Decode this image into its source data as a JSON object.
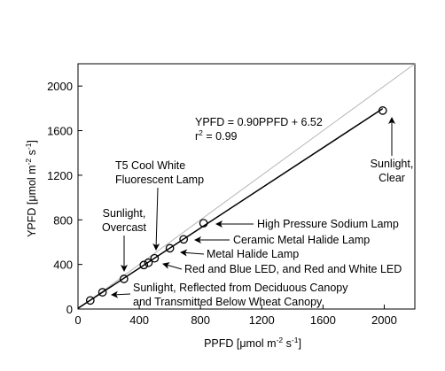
{
  "chart_data": {
    "type": "scatter",
    "xlabel": {
      "base": "PPFD [μmol m",
      "exp1": "-2",
      "mid": " s",
      "exp2": "-1",
      "end": "]"
    },
    "ylabel": {
      "base": "YPFD [μmol m",
      "exp1": "-2",
      "mid": " s",
      "exp2": "-1",
      "end": "]"
    },
    "xlim": [
      0,
      2200
    ],
    "ylim": [
      0,
      2200
    ],
    "xticks": [
      0,
      400,
      800,
      1200,
      1600,
      2000
    ],
    "yticks": [
      0,
      400,
      800,
      1200,
      1600,
      2000
    ],
    "grid": false,
    "points": [
      {
        "x": 80,
        "y": 77
      },
      {
        "x": 160,
        "y": 150
      },
      {
        "x": 300,
        "y": 270
      },
      {
        "x": 430,
        "y": 395
      },
      {
        "x": 460,
        "y": 415
      },
      {
        "x": 500,
        "y": 455
      },
      {
        "x": 600,
        "y": 545
      },
      {
        "x": 690,
        "y": 625
      },
      {
        "x": 820,
        "y": 770
      },
      {
        "x": 1990,
        "y": 1780
      }
    ],
    "fit_line": {
      "slope": 0.9,
      "intercept": 6.52,
      "x_range": [
        0,
        1990
      ]
    },
    "identity_line": {
      "x_range": [
        0,
        2200
      ]
    },
    "equation": {
      "line1": "YPFD = 0.90PPFD + 6.52",
      "r2_base": "r",
      "r2_exp": "2",
      "r2_rest": " = 0.99"
    },
    "annotations": [
      {
        "lines": [
          "Sunlight,",
          "Clear"
        ]
      },
      {
        "lines": [
          "T5 Cool White",
          "Fluorescent Lamp"
        ]
      },
      {
        "lines": [
          "Sunlight,",
          "Overcast"
        ]
      },
      {
        "lines": [
          "High Pressure Sodium Lamp"
        ]
      },
      {
        "lines": [
          "Ceramic Metal Halide Lamp"
        ]
      },
      {
        "lines": [
          "Metal Halide Lamp"
        ]
      },
      {
        "lines": [
          "Red and Blue LED, and Red and White LED"
        ]
      },
      {
        "lines": [
          "Sunlight, Reflected from Deciduous Canopy",
          "and Transmitted Below Wheat Canopy"
        ]
      }
    ]
  }
}
